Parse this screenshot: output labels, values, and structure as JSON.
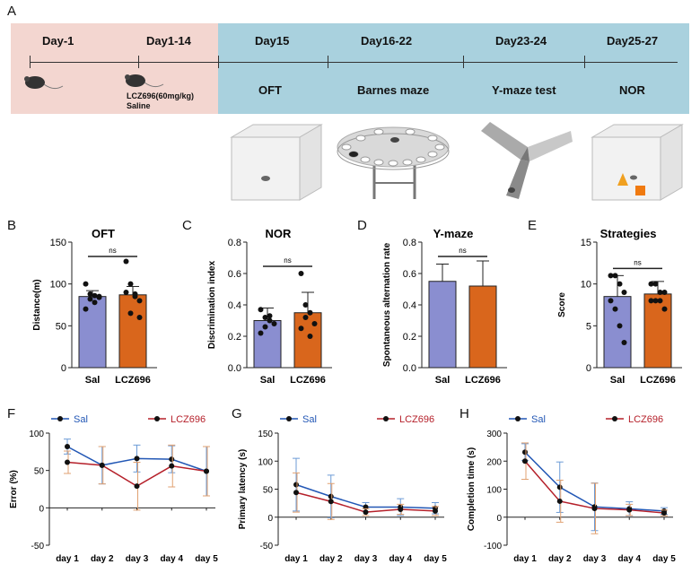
{
  "panels": {
    "A": "A",
    "B": "B",
    "C": "C",
    "D": "D",
    "E": "E",
    "F": "F",
    "G": "G",
    "H": "H"
  },
  "timeline": {
    "pre": [
      {
        "day": "Day-1"
      },
      {
        "day": "Day1-14",
        "treatment_line1": "LCZ696(60mg/kg)",
        "treatment_line2": "Saline"
      }
    ],
    "tests": [
      {
        "day": "Day15",
        "test": "OFT"
      },
      {
        "day": "Day16-22",
        "test": "Barnes maze"
      },
      {
        "day": "Day23-24",
        "test": "Y-maze test"
      },
      {
        "day": "Day25-27",
        "test": "NOR"
      }
    ],
    "colors": {
      "pre_bg": "#f3d6d0",
      "test_bg": "#a9d1de"
    }
  },
  "colors": {
    "sal_bar": "#8a8ed0",
    "lcz_bar": "#d9661c",
    "sal_line": "#2257b5",
    "lcz_line": "#b5202a",
    "error_sal": "#6c9bd6",
    "error_lcz": "#e0a070"
  },
  "chart_data": [
    {
      "id": "B",
      "type": "bar",
      "title": "OFT",
      "ylabel": "Distance(m)",
      "categories": [
        "Sal",
        "LCZ696"
      ],
      "values": [
        85,
        87
      ],
      "errors": [
        7,
        10
      ],
      "ylim": [
        0,
        150
      ],
      "yticks": [
        0,
        50,
        100,
        150
      ],
      "sig": "ns",
      "points": [
        [
          100,
          82,
          78,
          85,
          70,
          88,
          86,
          84
        ],
        [
          127,
          100,
          85,
          80,
          90,
          65,
          88,
          60
        ]
      ]
    },
    {
      "id": "C",
      "type": "bar",
      "title": "NOR",
      "ylabel": "Discrimination index",
      "categories": [
        "Sal",
        "LCZ696"
      ],
      "values": [
        0.3,
        0.35
      ],
      "errors": [
        0.08,
        0.13
      ],
      "ylim": [
        0,
        0.8
      ],
      "yticks": [
        "0.0",
        "0.2",
        "0.4",
        "0.6",
        "0.8"
      ],
      "sig": "ns",
      "points": [
        [
          0.37,
          0.32,
          0.3,
          0.28,
          0.22,
          0.26,
          0.33
        ],
        [
          0.6,
          0.4,
          0.35,
          0.28,
          0.25,
          0.32,
          0.2
        ]
      ]
    },
    {
      "id": "D",
      "type": "bar",
      "title": "Y-maze",
      "ylabel": "Spontaneous alternation rate",
      "categories": [
        "Sal",
        "LCZ696"
      ],
      "values": [
        0.55,
        0.52
      ],
      "errors": [
        0.11,
        0.16
      ],
      "ylim": [
        0,
        0.8
      ],
      "yticks": [
        "0.0",
        "0.2",
        "0.4",
        "0.6",
        "0.8"
      ],
      "sig": "ns",
      "points": [
        [],
        []
      ]
    },
    {
      "id": "E",
      "type": "bar",
      "title": "Strategies",
      "ylabel": "Score",
      "categories": [
        "Sal",
        "LCZ696"
      ],
      "values": [
        8.5,
        8.8
      ],
      "errors": [
        2.5,
        1.5
      ],
      "ylim": [
        0,
        15
      ],
      "yticks": [
        0,
        5,
        10,
        15
      ],
      "sig": "ns",
      "points": [
        [
          11,
          11,
          10,
          9,
          8,
          7,
          5,
          3
        ],
        [
          10,
          10,
          9,
          9,
          8,
          8,
          8,
          7
        ]
      ]
    },
    {
      "id": "F",
      "type": "line",
      "ylabel": "Error (%)",
      "categories": [
        "day 1",
        "day 2",
        "day 3",
        "day 4",
        "day 5"
      ],
      "ylim": [
        -50,
        100
      ],
      "yticks": [
        -50,
        0,
        50,
        100
      ],
      "series": [
        {
          "name": "Sal",
          "values": [
            82,
            57,
            66,
            65,
            49
          ],
          "errors": [
            10,
            25,
            18,
            18,
            33
          ]
        },
        {
          "name": "LCZ696",
          "values": [
            61,
            57,
            29,
            56,
            49
          ],
          "errors": [
            15,
            25,
            32,
            28,
            33
          ]
        }
      ]
    },
    {
      "id": "G",
      "type": "line",
      "ylabel": "Primary latency (s)",
      "categories": [
        "day 1",
        "day 2",
        "day 3",
        "day 4",
        "day 5"
      ],
      "ylim": [
        -50,
        150
      ],
      "yticks": [
        -50,
        0,
        50,
        100,
        150
      ],
      "series": [
        {
          "name": "Sal",
          "values": [
            58,
            37,
            18,
            18,
            16
          ],
          "errors": [
            47,
            38,
            8,
            15,
            10
          ]
        },
        {
          "name": "LCZ696",
          "values": [
            44,
            28,
            9,
            14,
            11
          ],
          "errors": [
            35,
            32,
            6,
            9,
            8
          ]
        }
      ]
    },
    {
      "id": "H",
      "type": "line",
      "ylabel": "Completion time (s)",
      "categories": [
        "day 1",
        "day 2",
        "day 3",
        "day 4",
        "day 5"
      ],
      "ylim": [
        -100,
        300
      ],
      "yticks": [
        -100,
        0,
        100,
        200,
        300
      ],
      "series": [
        {
          "name": "Sal",
          "values": [
            232,
            107,
            37,
            30,
            22
          ],
          "errors": [
            30,
            90,
            85,
            25,
            12
          ]
        },
        {
          "name": "LCZ696",
          "values": [
            200,
            57,
            31,
            26,
            15
          ],
          "errors": [
            65,
            75,
            90,
            20,
            10
          ]
        }
      ]
    }
  ]
}
